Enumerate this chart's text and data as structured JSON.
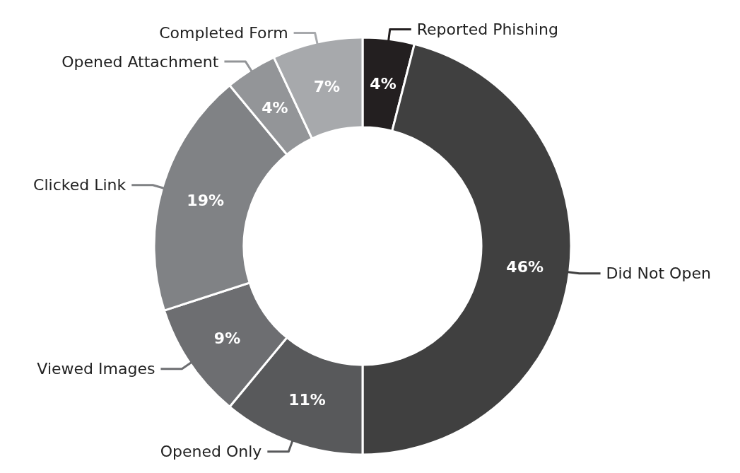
{
  "chart_data": {
    "type": "donut",
    "categories": [
      "Reported Phishing",
      "Did Not Open",
      "Opened Only",
      "Viewed Images",
      "Clicked Link",
      "Opened Attachment",
      "Completed Form"
    ],
    "values": [
      4,
      46,
      11,
      9,
      19,
      4,
      7
    ],
    "value_labels": [
      "4%",
      "46%",
      "11%",
      "9%",
      "19%",
      "4%",
      "7%"
    ],
    "colors": [
      "#231f20",
      "#404040",
      "#58595b",
      "#6d6e71",
      "#808285",
      "#939598",
      "#a7a9ac"
    ]
  }
}
